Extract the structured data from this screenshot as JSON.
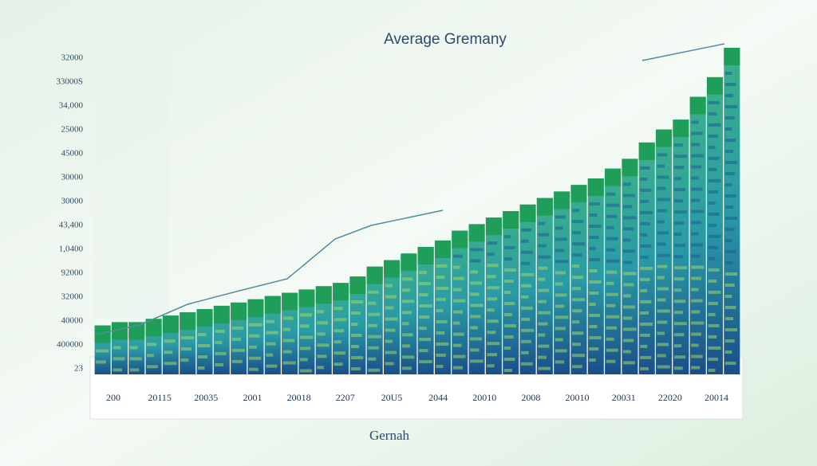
{
  "chart_data": {
    "type": "bar",
    "title": "Average Gremany",
    "x_label": "Gernah",
    "y_axis_labels": [
      "32000",
      "33000S",
      "34,000",
      "25000",
      "45000",
      "30000",
      "30000",
      "43,400",
      "1,0400",
      "92000",
      "32000",
      "40000",
      "400000",
      "23"
    ],
    "x_axis_labels": [
      "200",
      "20115",
      "20035",
      "2001",
      "20018",
      "2207",
      "20U5",
      "2044",
      "20010",
      "2008",
      "20010",
      "20031",
      "22020",
      "20014"
    ],
    "values": [
      15,
      16,
      16,
      17,
      18,
      19,
      20,
      21,
      22,
      23,
      24,
      25,
      26,
      27,
      28,
      30,
      33,
      35,
      37,
      39,
      41,
      44,
      46,
      48,
      50,
      52,
      54,
      56,
      58,
      60,
      63,
      66,
      71,
      75,
      78,
      85,
      91,
      100
    ],
    "color": "#1f9e5a",
    "ylim": [
      0,
      100
    ]
  }
}
